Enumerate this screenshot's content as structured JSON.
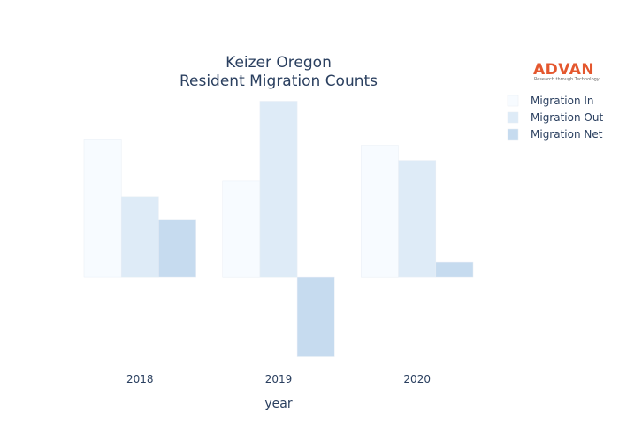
{
  "chart_data": {
    "type": "bar",
    "title": [
      "Keizer Oregon",
      "Resident Migration Counts"
    ],
    "xlabel": "year",
    "ylabel": "",
    "categories": [
      "2018",
      "2019",
      "2020"
    ],
    "series": [
      {
        "name": "Migration In",
        "color": "#f7fbff",
        "values": [
          1740,
          1210,
          1660
        ]
      },
      {
        "name": "Migration Out",
        "color": "#deebf7",
        "values": [
          1010,
          2220,
          1470
        ]
      },
      {
        "name": "Migration Net",
        "color": "#c6dbef",
        "values": [
          720,
          -1010,
          190
        ]
      }
    ],
    "ylim": [
      -1060,
      2270
    ],
    "grid": false,
    "y_ticks_shown": false,
    "legend_position": "right"
  },
  "logo": {
    "text": "ADVAN",
    "tagline": "Research through Technology",
    "color": "#e4572e"
  }
}
